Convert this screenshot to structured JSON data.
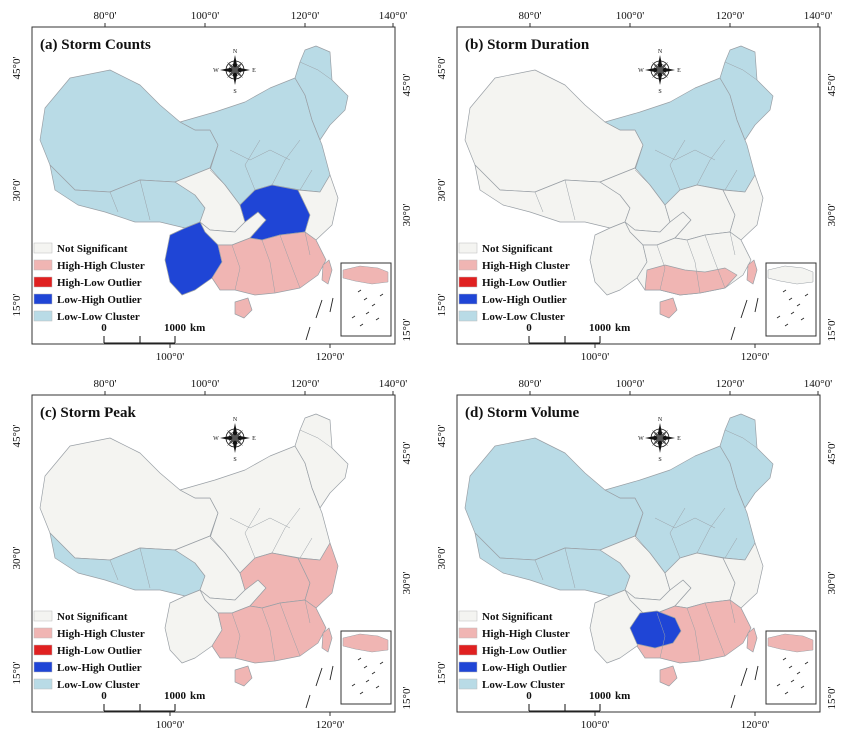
{
  "colors": {
    "not_significant": "#f4f4f1",
    "high_high": "#f0b5b3",
    "high_low": "#e02020",
    "low_high": "#1f45d6",
    "low_low": "#b9dbe6",
    "border": "#9aa0a6",
    "frame": "#333333"
  },
  "legend": [
    {
      "label": "Not Significant",
      "color_key": "not_significant"
    },
    {
      "label": "High-High Cluster",
      "color_key": "high_high"
    },
    {
      "label": "High-Low Outlier",
      "color_key": "high_low"
    },
    {
      "label": "Low-High Outlier",
      "color_key": "low_high"
    },
    {
      "label": "Low-Low Cluster",
      "color_key": "low_low"
    }
  ],
  "compass": {
    "n": "N",
    "s": "S",
    "e": "E",
    "w": "W"
  },
  "scale": {
    "zero": "0",
    "max": "1000",
    "unit": "km"
  },
  "axes": {
    "top": [
      "80°0'",
      "100°0'",
      "120°0'",
      "140°0'"
    ],
    "bottom": [
      "100°0'",
      "120°0'"
    ],
    "left": [
      "45°0'",
      "30°0'",
      "15°0'"
    ],
    "right": [
      "45°0'",
      "30°0'",
      "15°0'"
    ]
  },
  "panels": [
    {
      "title": "(a) Storm Counts",
      "regions": {
        "northwest": "low_low",
        "north": "low_low",
        "tibet": "low_low",
        "northeast": "low_low",
        "inner_west": "not_significant",
        "sichuan": "not_significant",
        "yunnan": "low_high",
        "central": "low_high",
        "southeast": "high_high",
        "east": "not_significant",
        "taiwan": "high_high",
        "hainan": "high_high"
      }
    },
    {
      "title": "(b) Storm Duration",
      "regions": {
        "northwest": "not_significant",
        "north": "low_low",
        "tibet": "not_significant",
        "northeast": "low_low",
        "inner_west": "not_significant",
        "sichuan": "not_significant",
        "yunnan": "not_significant",
        "central": "not_significant",
        "southeast": "not_significant",
        "east": "not_significant",
        "guangxi": "high_high",
        "taiwan": "high_high",
        "hainan": "high_high"
      }
    },
    {
      "title": "(c) Storm Peak",
      "regions": {
        "northwest": "not_significant",
        "north": "not_significant",
        "tibet": "low_low",
        "northeast": "not_significant",
        "inner_west": "not_significant",
        "sichuan": "not_significant",
        "yunnan": "not_significant",
        "central": "high_high",
        "southeast": "high_high",
        "east": "high_high",
        "taiwan": "high_high",
        "hainan": "high_high"
      }
    },
    {
      "title": "(d) Storm Volume",
      "regions": {
        "northwest": "low_low",
        "north": "low_low",
        "tibet": "low_low",
        "northeast": "low_low",
        "inner_west": "not_significant",
        "sichuan": "not_significant",
        "yunnan": "not_significant",
        "central": "not_significant",
        "southeast": "high_high",
        "east": "not_significant",
        "guizhou": "low_high",
        "taiwan": "high_high",
        "hainan": "high_high"
      }
    }
  ]
}
